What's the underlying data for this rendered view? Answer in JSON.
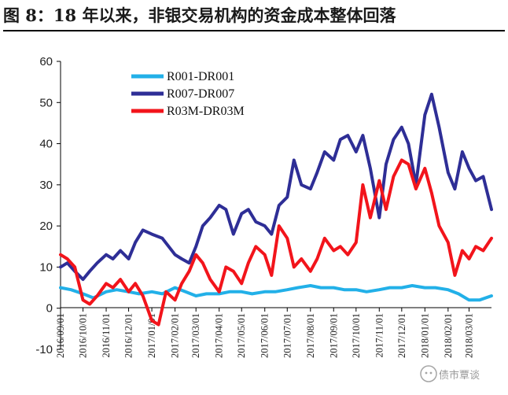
{
  "title": "图 8：18 年以来，非银交易机构的资金成本整体回落",
  "watermark": "债市覃谈",
  "colors": {
    "R001-DR001": "#22b0e8",
    "R007-DR007": "#2e2e96",
    "R03M-DR03M": "#f2141b"
  },
  "chart_data": {
    "type": "line",
    "ylim": [
      -10,
      60
    ],
    "yticks": [
      -10,
      0,
      10,
      20,
      30,
      40,
      50,
      60
    ],
    "xlim": [
      "2016-09-01",
      "2018-03-31"
    ],
    "x_ticks": [
      "2016/09/01",
      "2016/10/01",
      "2016/11/01",
      "2016/12/01",
      "2017/01/01",
      "2017/02/01",
      "2017/03/01",
      "2017/04/01",
      "2017/05/01",
      "2017/06/01",
      "2017/07/01",
      "2017/08/01",
      "2017/09/01",
      "2017/10/01",
      "2017/11/01",
      "2017/12/01",
      "2018/01/01",
      "2018/02/01",
      "2018/03/01"
    ],
    "legend_position": "top-center",
    "grid": false,
    "series": [
      {
        "name": "R001-DR001",
        "x": [
          "2016-09-01",
          "2016-09-15",
          "2016-10-01",
          "2016-10-15",
          "2016-11-01",
          "2016-11-15",
          "2016-12-01",
          "2016-12-15",
          "2017-01-01",
          "2017-01-15",
          "2017-02-01",
          "2017-02-15",
          "2017-03-01",
          "2017-03-15",
          "2017-04-01",
          "2017-04-15",
          "2017-05-01",
          "2017-05-15",
          "2017-06-01",
          "2017-06-15",
          "2017-07-01",
          "2017-07-15",
          "2017-08-01",
          "2017-08-15",
          "2017-09-01",
          "2017-09-15",
          "2017-10-01",
          "2017-10-15",
          "2017-11-01",
          "2017-11-15",
          "2017-12-01",
          "2017-12-15",
          "2018-01-01",
          "2018-01-15",
          "2018-02-01",
          "2018-02-15",
          "2018-03-01",
          "2018-03-15",
          "2018-03-31"
        ],
        "values": [
          5,
          4.5,
          3.5,
          2.5,
          4,
          4.5,
          4,
          3.5,
          4,
          3.5,
          5,
          4,
          3,
          3.5,
          3.5,
          4,
          4,
          3.5,
          4,
          4,
          4.5,
          5,
          5.5,
          5,
          5,
          4.5,
          4.5,
          4,
          4.5,
          5,
          5,
          5.5,
          5,
          5,
          4.5,
          3.5,
          2,
          2,
          3
        ]
      },
      {
        "name": "R007-DR007",
        "x": [
          "2016-09-01",
          "2016-09-10",
          "2016-09-20",
          "2016-10-01",
          "2016-10-10",
          "2016-10-20",
          "2016-11-01",
          "2016-11-10",
          "2016-11-20",
          "2016-12-01",
          "2016-12-10",
          "2016-12-20",
          "2017-01-01",
          "2017-01-15",
          "2017-02-01",
          "2017-02-10",
          "2017-02-20",
          "2017-03-01",
          "2017-03-10",
          "2017-03-20",
          "2017-04-01",
          "2017-04-10",
          "2017-04-20",
          "2017-05-01",
          "2017-05-10",
          "2017-05-20",
          "2017-06-01",
          "2017-06-10",
          "2017-06-20",
          "2017-07-01",
          "2017-07-10",
          "2017-07-20",
          "2017-08-01",
          "2017-08-10",
          "2017-08-20",
          "2017-09-01",
          "2017-09-10",
          "2017-09-20",
          "2017-10-01",
          "2017-10-10",
          "2017-10-20",
          "2017-11-01",
          "2017-11-10",
          "2017-11-20",
          "2017-12-01",
          "2017-12-10",
          "2017-12-20",
          "2018-01-01",
          "2018-01-10",
          "2018-01-20",
          "2018-02-01",
          "2018-02-10",
          "2018-02-20",
          "2018-03-01",
          "2018-03-10",
          "2018-03-20",
          "2018-03-31"
        ],
        "values": [
          10,
          11,
          9,
          7,
          9,
          11,
          13,
          12,
          14,
          12,
          16,
          19,
          18,
          17,
          13,
          12,
          11,
          15,
          20,
          22,
          25,
          24,
          18,
          23,
          24,
          21,
          20,
          18,
          25,
          27,
          36,
          30,
          29,
          33,
          38,
          36,
          41,
          42,
          38,
          42,
          34,
          22,
          35,
          41,
          44,
          40,
          30,
          47,
          52,
          44,
          33,
          29,
          38,
          34,
          31,
          32,
          24
        ]
      },
      {
        "name": "R03M-DR03M",
        "x": [
          "2016-09-01",
          "2016-09-10",
          "2016-09-20",
          "2016-10-01",
          "2016-10-10",
          "2016-10-20",
          "2016-11-01",
          "2016-11-10",
          "2016-11-20",
          "2016-12-01",
          "2016-12-10",
          "2016-12-20",
          "2017-01-01",
          "2017-01-10",
          "2017-01-20",
          "2017-02-01",
          "2017-02-10",
          "2017-02-20",
          "2017-03-01",
          "2017-03-10",
          "2017-03-20",
          "2017-04-01",
          "2017-04-10",
          "2017-04-20",
          "2017-05-01",
          "2017-05-10",
          "2017-05-20",
          "2017-06-01",
          "2017-06-10",
          "2017-06-20",
          "2017-07-01",
          "2017-07-10",
          "2017-07-20",
          "2017-08-01",
          "2017-08-10",
          "2017-08-20",
          "2017-09-01",
          "2017-09-10",
          "2017-09-20",
          "2017-10-01",
          "2017-10-10",
          "2017-10-20",
          "2017-11-01",
          "2017-11-10",
          "2017-11-20",
          "2017-12-01",
          "2017-12-10",
          "2017-12-20",
          "2018-01-01",
          "2018-01-10",
          "2018-01-20",
          "2018-02-01",
          "2018-02-10",
          "2018-02-20",
          "2018-03-01",
          "2018-03-10",
          "2018-03-20",
          "2018-03-31"
        ],
        "values": [
          13,
          12,
          10,
          2,
          1,
          3,
          6,
          5,
          7,
          4,
          6,
          3,
          -3,
          -4,
          4,
          2,
          6,
          9,
          13,
          11,
          7,
          4,
          10,
          9,
          6,
          11,
          15,
          13,
          8,
          20,
          17,
          10,
          12,
          9,
          12,
          17,
          14,
          15,
          13,
          16,
          30,
          22,
          31,
          24,
          32,
          36,
          35,
          29,
          34,
          28,
          20,
          16,
          8,
          14,
          12,
          15,
          14,
          17
        ]
      }
    ]
  }
}
